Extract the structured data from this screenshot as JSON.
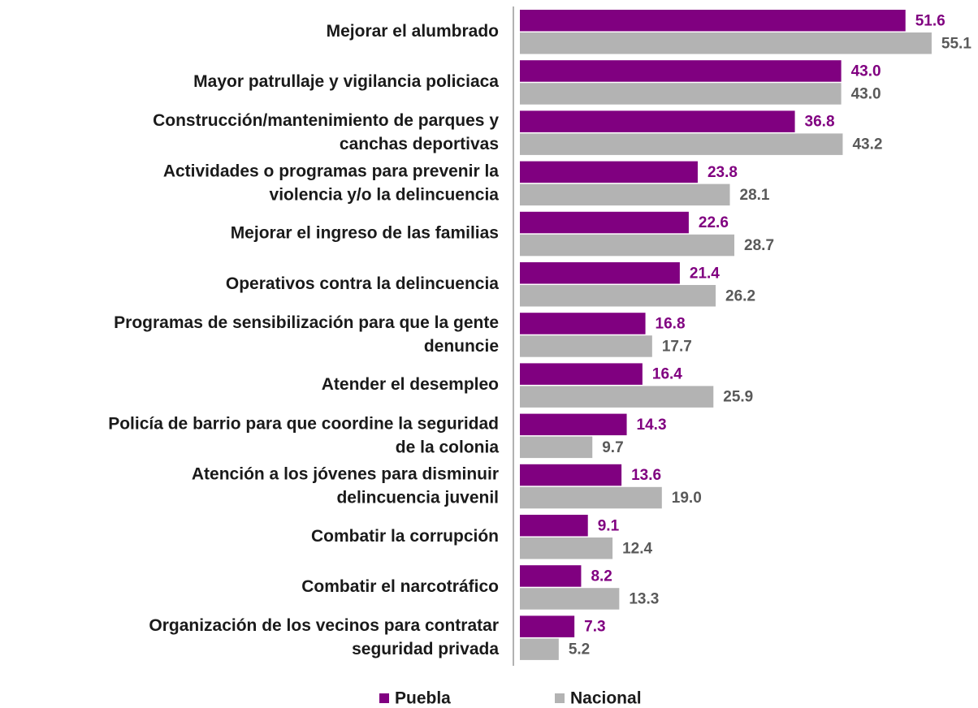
{
  "chart_data": {
    "type": "bar",
    "orientation": "horizontal",
    "categories": [
      "Mejorar el alumbrado",
      "Mayor patrullaje y vigilancia policiaca",
      "Construcción/mantenimiento de parques y\ncanchas deportivas",
      "Actividades o programas para prevenir la\nviolencia y/o la delincuencia",
      "Mejorar el ingreso de las familias",
      "Operativos contra la delincuencia",
      "Programas de sensibilización para que la gente\ndenuncie",
      "Atender el desempleo",
      "Policía de barrio para que coordine la seguridad\nde la colonia",
      "Atención a los jóvenes para disminuir\ndelincuencia juvenil",
      "Combatir la corrupción",
      "Combatir el narcotráfico",
      "Organización de los vecinos para contratar\nseguridad privada"
    ],
    "series": [
      {
        "name": "Puebla",
        "color": "#800080",
        "label_color": "#800080",
        "values": [
          51.6,
          43,
          36.8,
          23.8,
          22.6,
          21.4,
          16.8,
          16.4,
          14.3,
          13.6,
          9.1,
          8.2,
          7.3
        ],
        "value_labels": [
          "51.6",
          "43.0",
          "36.8",
          "23.8",
          "22.6",
          "21.4",
          "16.8",
          "16.4",
          "14.3",
          "13.6",
          "9.1",
          "8.2",
          "7.3"
        ]
      },
      {
        "name": "Nacional",
        "color": "#b3b3b3",
        "label_color": "#595959",
        "values": [
          55.1,
          43,
          43.2,
          28.1,
          28.7,
          26.2,
          17.7,
          25.9,
          9.7,
          19,
          12.4,
          13.3,
          5.2
        ],
        "value_labels": [
          "55.1",
          "43.0",
          "43.2",
          "28.1",
          "28.7",
          "26.2",
          "17.7",
          "25.9",
          "9.7",
          "19.0",
          "12.4",
          "13.3",
          "5.2"
        ]
      }
    ],
    "xlim": [
      0,
      60
    ],
    "legend": "bottom"
  }
}
